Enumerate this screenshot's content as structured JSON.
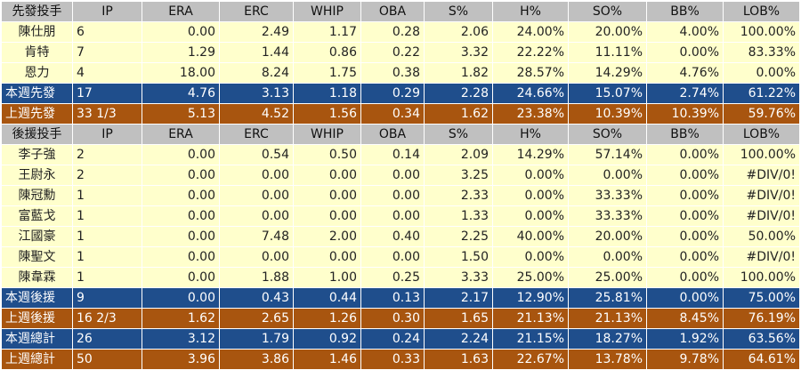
{
  "starters": {
    "header": [
      "先發投手",
      "IP",
      "ERA",
      "ERC",
      "WHIP",
      "OBA",
      "S%",
      "H%",
      "SO%",
      "BB%",
      "LOB%"
    ],
    "rows": [
      [
        "陳仕朋",
        "6",
        "0.00",
        "2.49",
        "1.17",
        "0.28",
        "2.06",
        "24.00%",
        "20.00%",
        "4.00%",
        "100.00%"
      ],
      [
        "肯特",
        "7",
        "1.29",
        "1.44",
        "0.86",
        "0.22",
        "3.32",
        "22.22%",
        "11.11%",
        "0.00%",
        "83.33%"
      ],
      [
        "恩力",
        "4",
        "18.00",
        "8.24",
        "1.75",
        "0.38",
        "1.82",
        "28.57%",
        "14.29%",
        "4.76%",
        "0.00%"
      ]
    ],
    "this_week": [
      "本週先發",
      "17",
      "4.76",
      "3.13",
      "1.18",
      "0.29",
      "2.28",
      "24.66%",
      "15.07%",
      "2.74%",
      "61.22%"
    ],
    "last_week": [
      "上週先發",
      "33 1/3",
      "5.13",
      "4.52",
      "1.56",
      "0.34",
      "1.62",
      "23.38%",
      "10.39%",
      "10.39%",
      "59.76%"
    ]
  },
  "relievers": {
    "header": [
      "後援投手",
      "IP",
      "ERA",
      "ERC",
      "WHIP",
      "OBA",
      "S%",
      "H%",
      "SO%",
      "BB%",
      "LOB%"
    ],
    "rows": [
      [
        "李子強",
        "2",
        "0.00",
        "0.54",
        "0.50",
        "0.14",
        "2.09",
        "14.29%",
        "57.14%",
        "0.00%",
        "100.00%"
      ],
      [
        "王尉永",
        "2",
        "0.00",
        "0.00",
        "0.00",
        "0.00",
        "3.25",
        "0.00%",
        "0.00%",
        "0.00%",
        "#DIV/0!"
      ],
      [
        "陳冠勳",
        "1",
        "0.00",
        "0.00",
        "0.00",
        "0.00",
        "2.33",
        "0.00%",
        "33.33%",
        "0.00%",
        "#DIV/0!"
      ],
      [
        "富藍戈",
        "1",
        "0.00",
        "0.00",
        "0.00",
        "0.00",
        "1.33",
        "0.00%",
        "33.33%",
        "0.00%",
        "#DIV/0!"
      ],
      [
        "江國豪",
        "1",
        "0.00",
        "7.48",
        "2.00",
        "0.40",
        "2.25",
        "40.00%",
        "20.00%",
        "0.00%",
        "50.00%"
      ],
      [
        "陳聖文",
        "1",
        "0.00",
        "0.00",
        "0.00",
        "0.00",
        "1.50",
        "0.00%",
        "0.00%",
        "0.00%",
        "#DIV/0!"
      ],
      [
        "陳韋霖",
        "1",
        "0.00",
        "1.88",
        "1.00",
        "0.25",
        "3.33",
        "25.00%",
        "25.00%",
        "0.00%",
        "100.00%"
      ]
    ],
    "this_week": [
      "本週後援",
      "9",
      "0.00",
      "0.43",
      "0.44",
      "0.13",
      "2.17",
      "12.90%",
      "25.81%",
      "0.00%",
      "75.00%"
    ],
    "last_week": [
      "上週後援",
      "16 2/3",
      "1.62",
      "2.65",
      "1.26",
      "0.30",
      "1.65",
      "21.13%",
      "21.13%",
      "8.45%",
      "76.19%"
    ]
  },
  "totals": {
    "this_week": [
      "本週總計",
      "26",
      "3.12",
      "1.79",
      "0.92",
      "0.24",
      "2.24",
      "21.15%",
      "18.27%",
      "1.92%",
      "63.56%"
    ],
    "last_week": [
      "上週總計",
      "50",
      "3.96",
      "3.86",
      "1.46",
      "0.33",
      "1.63",
      "22.67%",
      "13.78%",
      "9.78%",
      "64.61%"
    ]
  },
  "colors": {
    "header_bg": "#c0c0c0",
    "row_bg": "#ffffcc",
    "this_week_bg": "#1f4e8c",
    "last_week_bg": "#a8550f"
  }
}
